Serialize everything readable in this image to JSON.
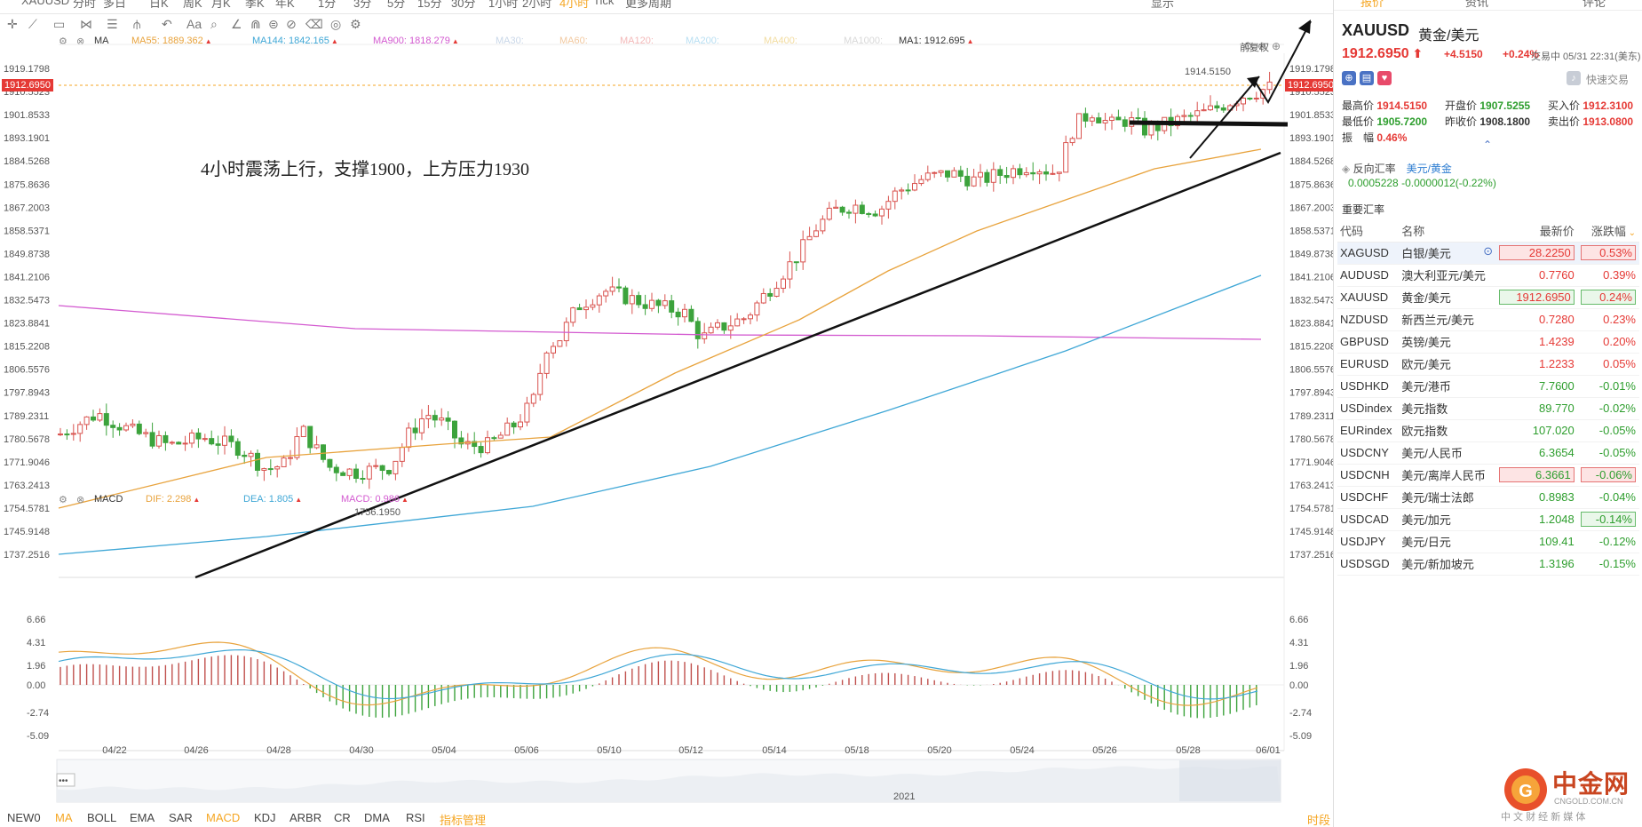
{
  "toolbar": {
    "timeframes": [
      "XAUUSD",
      "分时",
      "多日",
      "日K",
      "周K",
      "月K",
      "季K",
      "年K",
      "1分",
      "3分",
      "5分",
      "15分",
      "30分",
      "1小时",
      "2小时",
      "4小时",
      "Tick",
      "更多周期"
    ],
    "active_timeframe": "4小时",
    "right_label": "显示"
  },
  "ma_legend": {
    "title": "MA",
    "items": [
      {
        "label": "MA55: 1889.362",
        "color": "#e8a33d"
      },
      {
        "label": "MA144: 1842.165",
        "color": "#3fa7d6"
      },
      {
        "label": "MA900: 1818.279",
        "color": "#d35ad0"
      },
      {
        "label": "MA30:",
        "color": "#c9d7e8"
      },
      {
        "label": "MA60:",
        "color": "#f2c9a0"
      },
      {
        "label": "MA120:",
        "color": "#f3b8b8"
      },
      {
        "label": "MA200:",
        "color": "#b8dff2"
      },
      {
        "label": "MA400:",
        "color": "#f2dca0"
      },
      {
        "label": "MA1000:",
        "color": "#d8d8d8"
      },
      {
        "label": "MA1: 1912.695",
        "color": "#333333"
      }
    ],
    "adjust": "前复权"
  },
  "macd_legend": {
    "title": "MACD",
    "items": [
      {
        "label": "DIF: 2.298",
        "color": "#e8a33d"
      },
      {
        "label": "DEA: 1.805",
        "color": "#3fa7d6"
      },
      {
        "label": "MACD: 0.986",
        "color": "#d35ad0"
      }
    ]
  },
  "annotation": "4小时震荡上行，支撑1900，上方压力1930",
  "price_axis": [
    "1919.1798",
    "1910.5523",
    "1901.8533",
    "1893.1901",
    "1884.5268",
    "1875.8636",
    "1867.2003",
    "1858.5371",
    "1849.8738",
    "1841.2106",
    "1832.5473",
    "1823.8841",
    "1815.2208",
    "1806.5576",
    "1797.8943",
    "1789.2311",
    "1780.5678",
    "1771.9046",
    "1763.2413",
    "1754.5781",
    "1745.9148",
    "1737.2516"
  ],
  "current_price_flag": "1912.6950",
  "high_label": "1914.5150",
  "low_label": "1756.1950",
  "macd_axis": [
    "6.66",
    "4.31",
    "1.96",
    "0.00",
    "-2.74",
    "-5.09"
  ],
  "date_axis": [
    "04/22",
    "04/26",
    "04/28",
    "04/30",
    "05/04",
    "05/06",
    "05/10",
    "05/12",
    "05/14",
    "05/18",
    "05/20",
    "05/24",
    "05/26",
    "05/28",
    "06/01"
  ],
  "navigator_year": "2021",
  "bottom_indicators": [
    "NEW0",
    "MA",
    "BOLL",
    "EMA",
    "SAR",
    "MACD",
    "KDJ",
    "ARBR",
    "CR",
    "DMA",
    "RSI",
    "指标管理"
  ],
  "active_indicators": [
    "MA",
    "MACD"
  ],
  "bottom_right": "时段",
  "right_panel": {
    "tabs": [
      "报价",
      "资讯",
      "评论"
    ],
    "symbol": "XAUUSD",
    "symbol_name": "黄金/美元",
    "price": "1912.6950",
    "change": "+4.5150",
    "change_pct": "+0.24%",
    "status": "交易中 05/31 22:31(美东)",
    "quick_trade": "快速交易",
    "quote": {
      "high_label": "最高价",
      "high": "1914.5150",
      "open_label": "开盘价",
      "open": "1907.5255",
      "bid_label": "买入价",
      "bid": "1912.3100",
      "low_label": "最低价",
      "low": "1905.7200",
      "prev_label": "昨收价",
      "prev": "1908.1800",
      "ask_label": "卖出价",
      "ask": "1913.0800",
      "amp_label": "振　幅",
      "amp": "0.46%"
    },
    "reverse_label": "反向汇率",
    "reverse_pair": "美元/黄金",
    "reverse_value": "0.0005228",
    "reverse_change": "-0.0000012(-0.22%)",
    "section_title": "重要汇率",
    "columns": [
      "代码",
      "名称",
      "最新价",
      "涨跌幅"
    ],
    "rows": [
      {
        "code": "XAGUSD",
        "name": "白银/美元",
        "price": "28.2250",
        "pct": "0.53%",
        "dir": "up",
        "box": "red"
      },
      {
        "code": "AUDUSD",
        "name": "澳大利亚元/美元",
        "price": "0.7760",
        "pct": "0.39%",
        "dir": "up",
        "box": ""
      },
      {
        "code": "XAUUSD",
        "name": "黄金/美元",
        "price": "1912.6950",
        "pct": "0.24%",
        "dir": "up",
        "box": "green"
      },
      {
        "code": "NZDUSD",
        "name": "新西兰元/美元",
        "price": "0.7280",
        "pct": "0.23%",
        "dir": "up",
        "box": ""
      },
      {
        "code": "GBPUSD",
        "name": "英镑/美元",
        "price": "1.4239",
        "pct": "0.20%",
        "dir": "up",
        "box": ""
      },
      {
        "code": "EURUSD",
        "name": "欧元/美元",
        "price": "1.2233",
        "pct": "0.05%",
        "dir": "up",
        "box": ""
      },
      {
        "code": "USDHKD",
        "name": "美元/港币",
        "price": "7.7600",
        "pct": "-0.01%",
        "dir": "down",
        "box": ""
      },
      {
        "code": "USDindex",
        "name": "美元指数",
        "price": "89.770",
        "pct": "-0.02%",
        "dir": "down",
        "box": ""
      },
      {
        "code": "EURindex",
        "name": "欧元指数",
        "price": "107.020",
        "pct": "-0.05%",
        "dir": "down",
        "box": ""
      },
      {
        "code": "USDCNY",
        "name": "美元/人民币",
        "price": "6.3654",
        "pct": "-0.05%",
        "dir": "down",
        "box": ""
      },
      {
        "code": "USDCNH",
        "name": "美元/离岸人民币",
        "price": "6.3661",
        "pct": "-0.06%",
        "dir": "down",
        "box": "red"
      },
      {
        "code": "USDCHF",
        "name": "美元/瑞士法郎",
        "price": "0.8983",
        "pct": "-0.04%",
        "dir": "down",
        "box": ""
      },
      {
        "code": "USDCAD",
        "name": "美元/加元",
        "price": "1.2048",
        "pct": "-0.14%",
        "dir": "down",
        "box": "green"
      },
      {
        "code": "USDJPY",
        "name": "美元/日元",
        "price": "109.41",
        "pct": "-0.12%",
        "dir": "down",
        "box": ""
      },
      {
        "code": "USDSGD",
        "name": "美元/新加坡元",
        "price": "1.3196",
        "pct": "-0.15%",
        "dir": "down",
        "box": ""
      }
    ]
  },
  "watermark": {
    "brand": "中金网",
    "domain": "CNGOLD.COM.CN",
    "slogan": "中 文 财 经 新 媒 体"
  }
}
